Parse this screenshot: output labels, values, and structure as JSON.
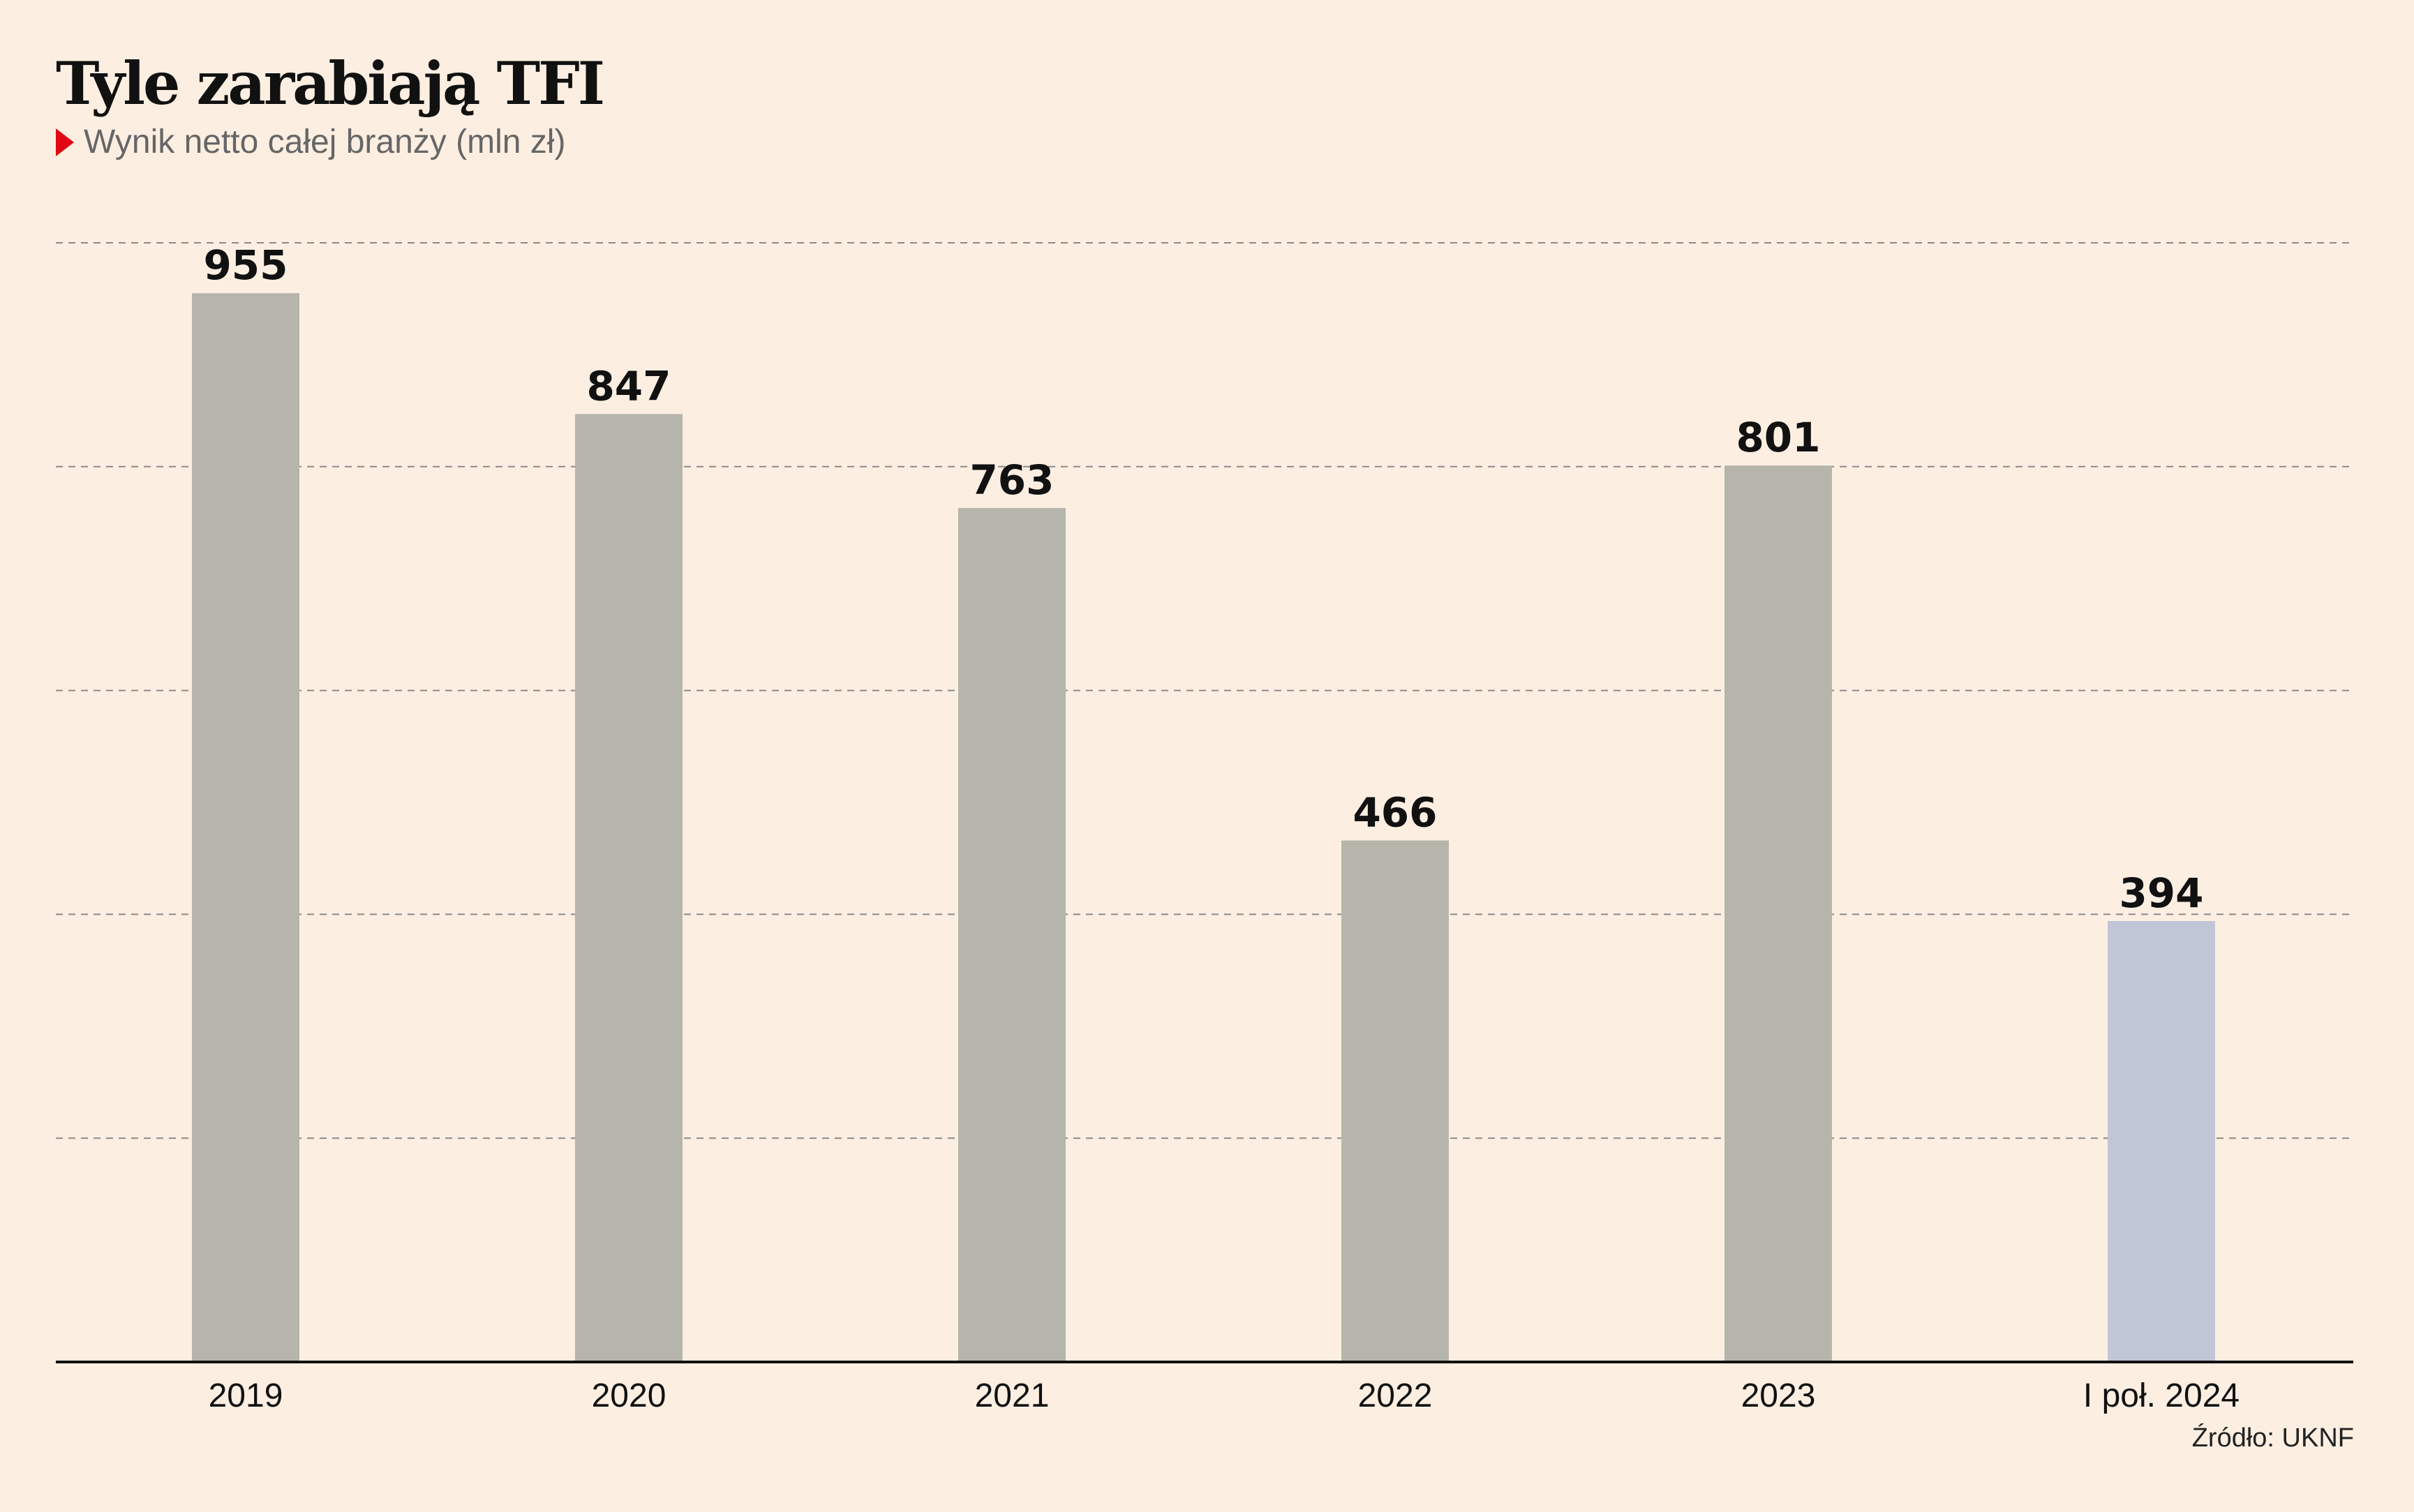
{
  "header": {
    "title": "Tyle zarabiają TFI",
    "subtitle": "Wynik netto całej branży (mln zł)"
  },
  "source": "Źródło: UKNF",
  "colors": {
    "background": "#fcefe2",
    "bar": "#b5b5ab",
    "bar_highlight": "#c1c6d6",
    "marker": "#e30613"
  },
  "chart_data": {
    "type": "bar",
    "categories": [
      "2019",
      "2020",
      "2021",
      "2022",
      "2023",
      "I poł. 2024"
    ],
    "values": [
      955,
      847,
      763,
      466,
      801,
      394
    ],
    "highlight_index": 5,
    "ylim": [
      0,
      1000
    ],
    "gridlines": [
      200,
      400,
      600,
      800,
      1000
    ],
    "grid": true,
    "legend": "none"
  }
}
